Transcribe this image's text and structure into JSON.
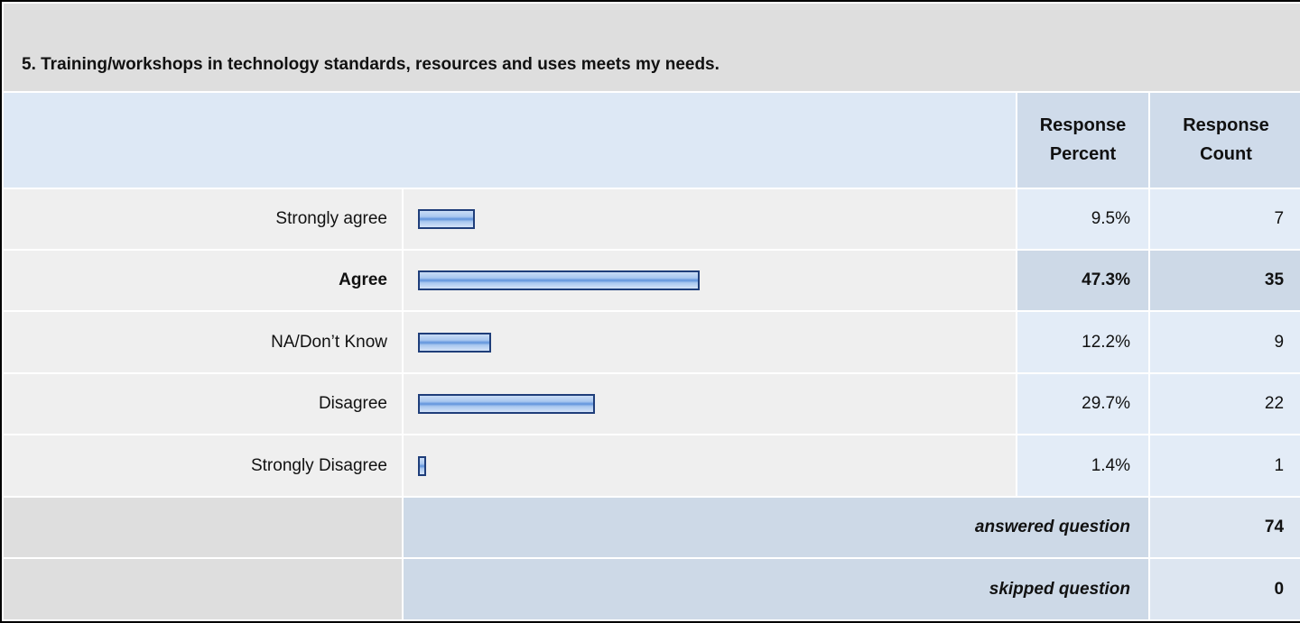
{
  "title": "5. Training/workshops in technology standards, resources and uses meets my needs.",
  "table": {
    "header": [
      "Response Percent",
      "Response Count"
    ],
    "rows": [
      {
        "label": "Strongly agree",
        "percent": 9.5,
        "percent_label": "9.5%",
        "count": 7
      },
      {
        "label": "Agree",
        "percent": 47.3,
        "percent_label": "47.3%",
        "count": 35
      },
      {
        "label": "NA/Don’t Know",
        "percent": 12.2,
        "percent_label": "12.2%",
        "count": 9
      },
      {
        "label": "Disagree",
        "percent": 29.7,
        "percent_label": "29.7%",
        "count": 22
      },
      {
        "label": "Strongly Disagree",
        "percent": 1.4,
        "percent_label": "1.4%",
        "count": 1
      }
    ],
    "footer": [
      {
        "label": "answered question",
        "value": 74
      },
      {
        "label": "skipped question",
        "value": 0
      }
    ]
  }
}
